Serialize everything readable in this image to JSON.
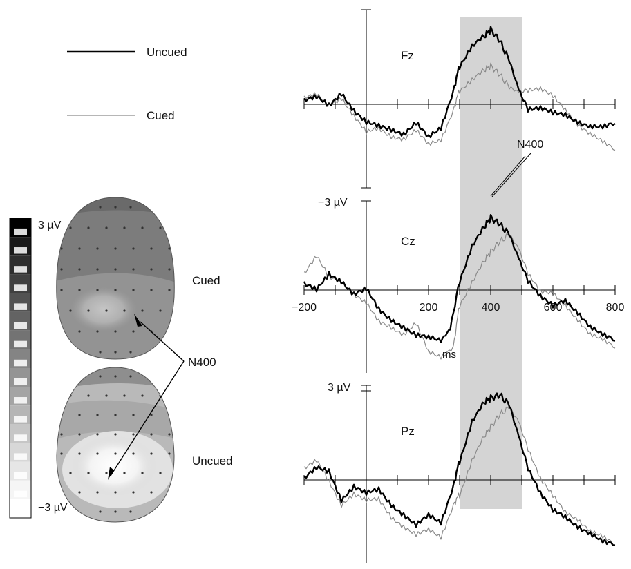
{
  "legend": {
    "items": [
      {
        "name": "Uncued",
        "color": "#000000",
        "weight": "thick"
      },
      {
        "name": "Cued",
        "color": "#8a8a8a",
        "weight": "thin"
      }
    ]
  },
  "colorbar": {
    "max_label": "3 µV",
    "min_label": "−3 µV",
    "steps": [
      "#000000",
      "#1a1a1a",
      "#2e2e2e",
      "#404040",
      "#525252",
      "#636363",
      "#737373",
      "#848484",
      "#949494",
      "#a4a4a4",
      "#b5b5b5",
      "#c6c6c6",
      "#d7d7d7",
      "#e6e6e6",
      "#f5f5f5",
      "#ffffff"
    ]
  },
  "topomaps": {
    "cued_label": "Cued",
    "uncued_label": "Uncued",
    "component_label": "N400"
  },
  "chart_data": {
    "type": "line",
    "x_ticks": [
      -200,
      200,
      400,
      600,
      800
    ],
    "x_tick_marks": [
      -200,
      -100,
      0,
      100,
      200,
      300,
      400,
      500,
      600,
      700,
      800
    ],
    "xlim": [
      -200,
      800
    ],
    "x_unit": "ms",
    "highlight_window": [
      300,
      500
    ],
    "scale_labels": {
      "top": "−3 µV",
      "bottom": "3 µV"
    },
    "peak_label": "N400",
    "panels": [
      {
        "name": "Fz",
        "series": [
          {
            "name": "Uncued",
            "points": [
              [
                -200,
                0.1
              ],
              [
                -160,
                0.3
              ],
              [
                -120,
                0.0
              ],
              [
                -80,
                0.5
              ],
              [
                -40,
                -0.3
              ],
              [
                0,
                -0.8
              ],
              [
                40,
                -0.9
              ],
              [
                80,
                -1.0
              ],
              [
                120,
                -1.2
              ],
              [
                160,
                -0.8
              ],
              [
                200,
                -1.4
              ],
              [
                240,
                -1.0
              ],
              [
                280,
                0.6
              ],
              [
                300,
                1.6
              ],
              [
                340,
                2.4
              ],
              [
                380,
                2.8
              ],
              [
                400,
                3.1
              ],
              [
                430,
                2.6
              ],
              [
                460,
                1.8
              ],
              [
                490,
                0.6
              ],
              [
                520,
                -0.2
              ],
              [
                560,
                -0.2
              ],
              [
                600,
                -0.4
              ],
              [
                640,
                -0.4
              ],
              [
                680,
                -0.7
              ],
              [
                720,
                -0.9
              ],
              [
                760,
                -1.0
              ],
              [
                800,
                -0.8
              ]
            ]
          },
          {
            "name": "Cued",
            "points": [
              [
                -200,
                0.2
              ],
              [
                -160,
                0.4
              ],
              [
                -120,
                0.0
              ],
              [
                -80,
                0.3
              ],
              [
                -40,
                -0.5
              ],
              [
                0,
                -1.2
              ],
              [
                40,
                -1.0
              ],
              [
                80,
                -1.3
              ],
              [
                120,
                -1.4
              ],
              [
                160,
                -1.1
              ],
              [
                200,
                -1.7
              ],
              [
                240,
                -1.5
              ],
              [
                280,
                -0.2
              ],
              [
                300,
                0.6
              ],
              [
                340,
                1.0
              ],
              [
                380,
                1.4
              ],
              [
                400,
                1.6
              ],
              [
                430,
                1.2
              ],
              [
                460,
                0.7
              ],
              [
                490,
                0.5
              ],
              [
                520,
                0.6
              ],
              [
                560,
                0.6
              ],
              [
                600,
                0.3
              ],
              [
                640,
                -0.2
              ],
              [
                680,
                -0.8
              ],
              [
                720,
                -1.2
              ],
              [
                760,
                -1.6
              ],
              [
                800,
                -1.9
              ]
            ]
          }
        ]
      },
      {
        "name": "Cz",
        "series": [
          {
            "name": "Uncued",
            "points": [
              [
                -200,
                0.2
              ],
              [
                -160,
                0.0
              ],
              [
                -120,
                0.7
              ],
              [
                -80,
                0.4
              ],
              [
                -40,
                -0.2
              ],
              [
                0,
                0.0
              ],
              [
                40,
                -0.8
              ],
              [
                80,
                -1.2
              ],
              [
                120,
                -1.5
              ],
              [
                160,
                -1.9
              ],
              [
                200,
                -2.0
              ],
              [
                240,
                -2.1
              ],
              [
                270,
                -1.6
              ],
              [
                300,
                0.4
              ],
              [
                340,
                1.8
              ],
              [
                380,
                2.6
              ],
              [
                400,
                3.0
              ],
              [
                430,
                2.7
              ],
              [
                460,
                2.3
              ],
              [
                490,
                1.3
              ],
              [
                520,
                0.4
              ],
              [
                560,
                -0.3
              ],
              [
                600,
                -0.7
              ],
              [
                640,
                -0.4
              ],
              [
                680,
                -0.9
              ],
              [
                720,
                -1.5
              ],
              [
                760,
                -1.9
              ],
              [
                800,
                -2.1
              ]
            ]
          },
          {
            "name": "Cued",
            "points": [
              [
                -200,
                0.6
              ],
              [
                -160,
                1.4
              ],
              [
                -120,
                0.6
              ],
              [
                -80,
                0.4
              ],
              [
                -40,
                -0.2
              ],
              [
                0,
                -0.6
              ],
              [
                40,
                -1.3
              ],
              [
                80,
                -1.5
              ],
              [
                120,
                -1.8
              ],
              [
                160,
                -1.4
              ],
              [
                200,
                -2.6
              ],
              [
                240,
                -2.8
              ],
              [
                280,
                -2.3
              ],
              [
                300,
                -0.6
              ],
              [
                340,
                0.3
              ],
              [
                380,
                1.2
              ],
              [
                400,
                1.6
              ],
              [
                430,
                2.0
              ],
              [
                460,
                2.3
              ],
              [
                490,
                1.7
              ],
              [
                520,
                0.7
              ],
              [
                560,
                -0.1
              ],
              [
                600,
                -0.2
              ],
              [
                640,
                -0.6
              ],
              [
                680,
                -1.2
              ],
              [
                720,
                -1.8
              ],
              [
                760,
                -2.1
              ],
              [
                800,
                -2.4
              ]
            ]
          }
        ]
      },
      {
        "name": "Pz",
        "series": [
          {
            "name": "Uncued",
            "points": [
              [
                -200,
                0.0
              ],
              [
                -160,
                0.5
              ],
              [
                -120,
                0.4
              ],
              [
                -80,
                -0.8
              ],
              [
                -40,
                -0.3
              ],
              [
                0,
                -0.6
              ],
              [
                40,
                -0.4
              ],
              [
                80,
                -1.0
              ],
              [
                120,
                -1.4
              ],
              [
                160,
                -1.9
              ],
              [
                200,
                -1.5
              ],
              [
                240,
                -1.8
              ],
              [
                280,
                -0.2
              ],
              [
                300,
                0.8
              ],
              [
                340,
                2.4
              ],
              [
                380,
                3.2
              ],
              [
                400,
                3.4
              ],
              [
                430,
                3.5
              ],
              [
                460,
                3.1
              ],
              [
                490,
                1.8
              ],
              [
                520,
                0.5
              ],
              [
                560,
                -0.6
              ],
              [
                600,
                -1.3
              ],
              [
                640,
                -1.5
              ],
              [
                680,
                -1.9
              ],
              [
                720,
                -2.2
              ],
              [
                760,
                -2.6
              ],
              [
                800,
                -2.7
              ]
            ]
          },
          {
            "name": "Cued",
            "points": [
              [
                -200,
                0.4
              ],
              [
                -160,
                0.8
              ],
              [
                -120,
                0.0
              ],
              [
                -80,
                -1.0
              ],
              [
                -40,
                -0.6
              ],
              [
                0,
                -0.9
              ],
              [
                40,
                -0.8
              ],
              [
                80,
                -1.5
              ],
              [
                120,
                -1.9
              ],
              [
                160,
                -2.3
              ],
              [
                200,
                -2.1
              ],
              [
                240,
                -2.4
              ],
              [
                280,
                -1.0
              ],
              [
                300,
                -0.6
              ],
              [
                340,
                0.8
              ],
              [
                380,
                1.8
              ],
              [
                400,
                2.2
              ],
              [
                430,
                2.7
              ],
              [
                460,
                3.0
              ],
              [
                490,
                2.4
              ],
              [
                520,
                1.3
              ],
              [
                560,
                0.0
              ],
              [
                600,
                -0.7
              ],
              [
                640,
                -1.3
              ],
              [
                680,
                -1.6
              ],
              [
                720,
                -2.1
              ],
              [
                760,
                -2.4
              ],
              [
                800,
                -2.7
              ]
            ]
          }
        ]
      }
    ]
  }
}
